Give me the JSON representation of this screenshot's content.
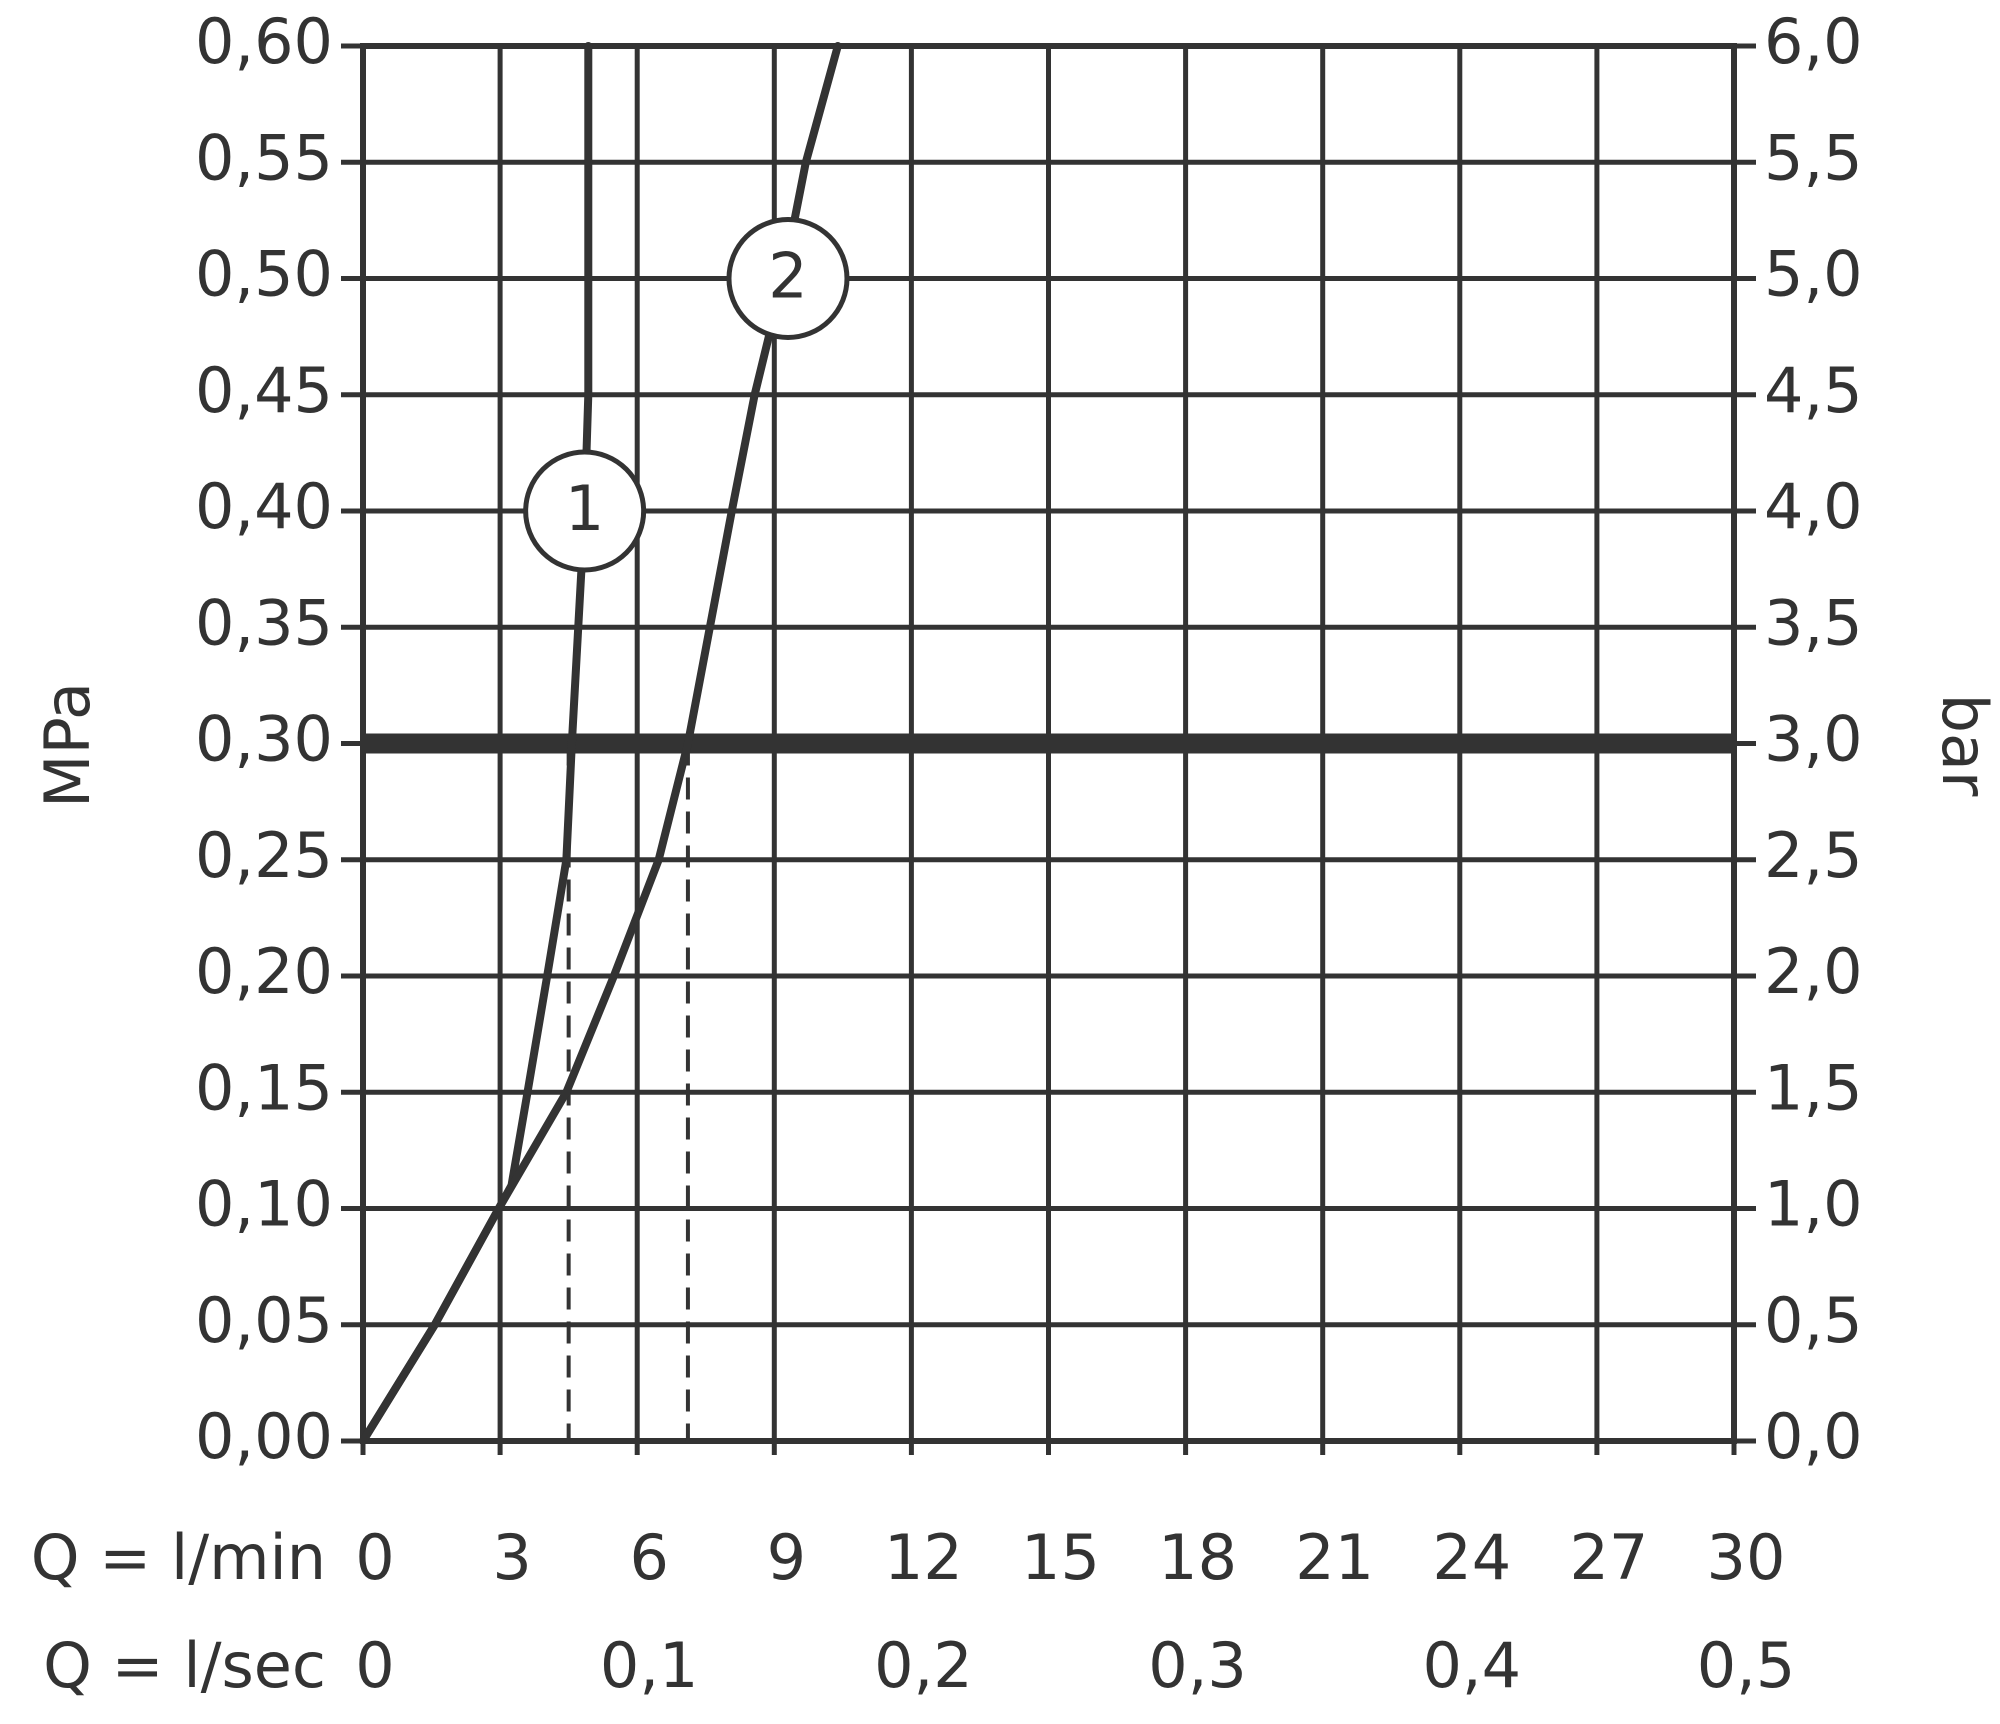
{
  "chart_data": {
    "type": "line",
    "y_label": "MPa",
    "y2_label": "bar",
    "x_label": "Q = l/min",
    "x2_label": "Q = l/sec",
    "xlim": [
      0,
      30
    ],
    "xticks": [
      0,
      3,
      6,
      9,
      12,
      15,
      18,
      21,
      24,
      27,
      30
    ],
    "x2lim": [
      0,
      0.5
    ],
    "x2ticks": [
      0,
      {
        "value": 0.1,
        "label": "0,1"
      },
      {
        "value": 0.2,
        "label": "0,2"
      },
      {
        "value": 0.3,
        "label": "0,3"
      },
      {
        "value": 0.4,
        "label": "0,4"
      },
      {
        "value": 0.5,
        "label": "0,5"
      }
    ],
    "ylim": [
      0,
      0.6
    ],
    "yticks": [
      {
        "value": 0,
        "label": "0,00"
      },
      {
        "value": 0.05,
        "label": "0,05"
      },
      {
        "value": 0.1,
        "label": "0,10"
      },
      {
        "value": 0.15,
        "label": "0,15"
      },
      {
        "value": 0.2,
        "label": "0,20"
      },
      {
        "value": 0.25,
        "label": "0,25"
      },
      {
        "value": 0.3,
        "label": "0,30"
      },
      {
        "value": 0.35,
        "label": "0,35"
      },
      {
        "value": 0.4,
        "label": "0,40"
      },
      {
        "value": 0.45,
        "label": "0,45"
      },
      {
        "value": 0.5,
        "label": "0,50"
      },
      {
        "value": 0.55,
        "label": "0,55"
      },
      {
        "value": 0.6,
        "label": "0,60"
      }
    ],
    "y2lim": [
      0,
      6
    ],
    "y2ticks": [
      {
        "value": 0,
        "label": "0,0"
      },
      {
        "value": 0.5,
        "label": "0,5"
      },
      {
        "value": 1,
        "label": "1,0"
      },
      {
        "value": 1.5,
        "label": "1,5"
      },
      {
        "value": 2,
        "label": "2,0"
      },
      {
        "value": 2.5,
        "label": "2,5"
      },
      {
        "value": 3,
        "label": "3,0"
      },
      {
        "value": 3.5,
        "label": "3,5"
      },
      {
        "value": 4,
        "label": "4,0"
      },
      {
        "value": 4.5,
        "label": "4,5"
      },
      {
        "value": 5,
        "label": "5,0"
      },
      {
        "value": 5.5,
        "label": "5,5"
      },
      {
        "value": 6,
        "label": "6,0"
      }
    ],
    "grid": true,
    "color": "#333333",
    "hline": 0.3,
    "vlines": [
      4.5,
      7.11
    ],
    "series": [
      {
        "name": "1",
        "x": [
          0,
          1.57,
          2.97,
          3.25,
          3.6,
          4.03,
          4.45,
          4.57,
          4.85,
          4.93,
          4.93
        ],
        "values": [
          0,
          0.05,
          0.1,
          0.11,
          0.15,
          0.2,
          0.25,
          0.3,
          0.4,
          0.45,
          0.6
        ]
      },
      {
        "name": "2",
        "x": [
          0,
          1.57,
          2.97,
          4.45,
          5.49,
          6.47,
          7.11,
          7.59,
          8.07,
          8.57,
          9.19,
          9.69,
          10.39
        ],
        "values": [
          0,
          0.05,
          0.1,
          0.15,
          0.2,
          0.25,
          0.3,
          0.35,
          0.4,
          0.45,
          0.5,
          0.55,
          0.6
        ]
      }
    ]
  }
}
